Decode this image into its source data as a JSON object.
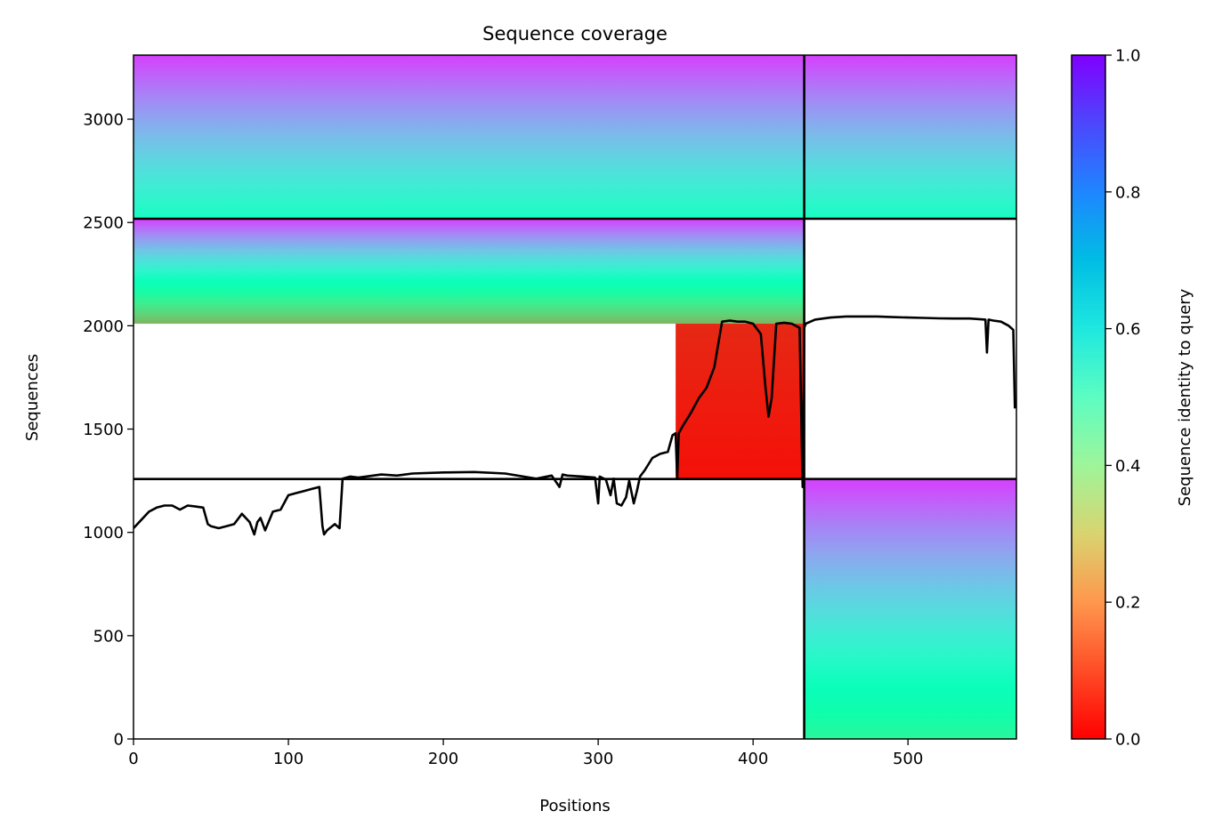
{
  "chart_data": {
    "type": "heatmap",
    "title": "Sequence coverage",
    "xlabel": "Positions",
    "ylabel": "Sequences",
    "xlim": [
      0,
      570
    ],
    "ylim": [
      0,
      3310
    ],
    "x_ticks": [
      0,
      100,
      200,
      300,
      400,
      500
    ],
    "y_ticks": [
      0,
      500,
      1000,
      1500,
      2000,
      2500,
      3000
    ],
    "colorbar": {
      "label": "Sequence identity to query",
      "colormap": "rainbow_r",
      "range": [
        0,
        1
      ],
      "ticks": [
        "0.0",
        "0.2",
        "0.4",
        "0.6",
        "0.8",
        "1.0"
      ]
    },
    "chain_boundaries": {
      "positions": [
        433
      ],
      "sequences": [
        1258,
        2518
      ]
    },
    "blocks": [
      {
        "name": "paired",
        "x_range": [
          0,
          570
        ],
        "y_range": [
          2518,
          3310
        ],
        "identity_top": 0.92,
        "identity_bottom": 0.55
      },
      {
        "name": "chain_1_unpaired_high",
        "x_range": [
          0,
          433
        ],
        "y_range": [
          2010,
          2518
        ],
        "identity_top": 0.92,
        "identity_bottom": 0.25
      },
      {
        "name": "chain_1_unpaired_low",
        "x_range": [
          350,
          433
        ],
        "y_range": [
          1258,
          2010
        ],
        "identity_top": 0.05,
        "identity_bottom": 0.02
      },
      {
        "name": "chain_2_unpaired",
        "x_range": [
          433,
          570
        ],
        "y_range": [
          0,
          1258
        ],
        "identity_top": 0.92,
        "identity_bottom": 0.42
      }
    ],
    "coverage_line": {
      "x": [
        0,
        5,
        10,
        15,
        20,
        25,
        30,
        35,
        40,
        45,
        48,
        50,
        55,
        60,
        65,
        70,
        75,
        78,
        80,
        82,
        85,
        90,
        95,
        100,
        105,
        110,
        115,
        120,
        122,
        123,
        125,
        130,
        133,
        135,
        140,
        145,
        150,
        160,
        170,
        180,
        200,
        220,
        240,
        260,
        270,
        275,
        277,
        280,
        290,
        298,
        300,
        301,
        305,
        308,
        310,
        312,
        315,
        318,
        320,
        323,
        325,
        327,
        330,
        335,
        340,
        345,
        348,
        350,
        351,
        352,
        355,
        360,
        365,
        370,
        375,
        380,
        385,
        390,
        395,
        400,
        405,
        408,
        410,
        412,
        415,
        420,
        425,
        430,
        432,
        433,
        434,
        440,
        450,
        460,
        470,
        480,
        490,
        500,
        510,
        520,
        530,
        540,
        550,
        551,
        552,
        555,
        560,
        565,
        568,
        569
      ],
      "y": [
        1020,
        1060,
        1100,
        1120,
        1130,
        1130,
        1110,
        1130,
        1125,
        1120,
        1040,
        1030,
        1020,
        1030,
        1040,
        1090,
        1050,
        990,
        1050,
        1070,
        1010,
        1100,
        1110,
        1180,
        1190,
        1200,
        1210,
        1220,
        1030,
        990,
        1010,
        1040,
        1020,
        1260,
        1270,
        1265,
        1270,
        1280,
        1275,
        1285,
        1290,
        1292,
        1285,
        1260,
        1275,
        1220,
        1280,
        1275,
        1270,
        1265,
        1140,
        1270,
        1255,
        1180,
        1260,
        1140,
        1130,
        1170,
        1250,
        1140,
        1200,
        1270,
        1300,
        1360,
        1380,
        1390,
        1470,
        1480,
        1260,
        1480,
        1520,
        1580,
        1650,
        1700,
        1800,
        2020,
        2025,
        2020,
        2020,
        2010,
        1960,
        1700,
        1560,
        1650,
        2010,
        2015,
        2010,
        1990,
        1220,
        1990,
        2010,
        2030,
        2040,
        2045,
        2045,
        2045,
        2042,
        2040,
        2038,
        2036,
        2035,
        2035,
        2030,
        1870,
        2030,
        2025,
        2020,
        2000,
        1980,
        1600
      ]
    }
  }
}
